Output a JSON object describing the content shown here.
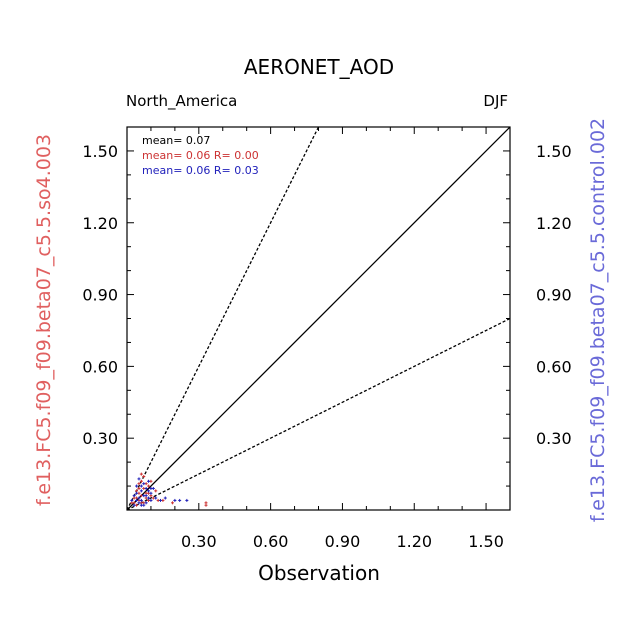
{
  "chart_data": {
    "type": "scatter",
    "title": "AERONET_AOD",
    "region": "North_America",
    "season": "DJF",
    "xlabel": "Observation",
    "ylabel_left": "f.e13.FC5.f09_f09.beta07_c5.5.so4.003",
    "ylabel_right": "f.e13.FC5.f09_f09.beta07_c5.5.control.002",
    "xlim": [
      0.0,
      1.6
    ],
    "ylim": [
      0.0,
      1.6
    ],
    "xticks": [
      0.3,
      0.6,
      0.9,
      1.2,
      1.5
    ],
    "yticks": [
      0.3,
      0.6,
      0.9,
      1.2,
      1.5
    ],
    "xtick_labels": [
      "0.30",
      "0.60",
      "0.90",
      "1.20",
      "1.50"
    ],
    "ytick_labels": [
      "0.30",
      "0.60",
      "0.90",
      "1.20",
      "1.50"
    ],
    "ref_lines": [
      {
        "name": "one-to-one",
        "slope": 1.0,
        "style": "solid"
      },
      {
        "name": "factor-2-upper",
        "slope": 2.0,
        "style": "dashed"
      },
      {
        "name": "factor-2-lower",
        "slope": 0.5,
        "style": "dashed"
      }
    ],
    "stats": {
      "obs_mean_text": "mean= 0.07",
      "model1_text": "mean= 0.06 R= 0.00",
      "model2_text": "mean= 0.06 R= 0.03"
    },
    "colors": {
      "model1": "#cc3333",
      "model2": "#2222bb",
      "axis": "#000000",
      "ylabel_left": "#e06060",
      "ylabel_right": "#6a6ad8"
    },
    "series": [
      {
        "name": "f.e13.FC5.f09_f09.beta07_c5.5.so4.003",
        "color": "#cc3333",
        "points": [
          [
            0.02,
            0.03
          ],
          [
            0.03,
            0.05
          ],
          [
            0.04,
            0.02
          ],
          [
            0.04,
            0.08
          ],
          [
            0.05,
            0.04
          ],
          [
            0.05,
            0.11
          ],
          [
            0.06,
            0.06
          ],
          [
            0.06,
            0.03
          ],
          [
            0.07,
            0.09
          ],
          [
            0.07,
            0.14
          ],
          [
            0.08,
            0.05
          ],
          [
            0.08,
            0.07
          ],
          [
            0.09,
            0.1
          ],
          [
            0.09,
            0.04
          ],
          [
            0.1,
            0.06
          ],
          [
            0.1,
            0.12
          ],
          [
            0.11,
            0.05
          ],
          [
            0.12,
            0.08
          ],
          [
            0.13,
            0.04
          ],
          [
            0.05,
            0.07
          ],
          [
            0.06,
            0.12
          ],
          [
            0.04,
            0.05
          ],
          [
            0.03,
            0.03
          ],
          [
            0.07,
            0.03
          ],
          [
            0.08,
            0.11
          ],
          [
            0.09,
            0.07
          ],
          [
            0.15,
            0.04
          ],
          [
            0.19,
            0.03
          ],
          [
            0.33,
            0.03
          ],
          [
            0.33,
            0.02
          ],
          [
            0.06,
            0.15
          ],
          [
            0.05,
            0.09
          ]
        ]
      },
      {
        "name": "f.e13.FC5.f09_f09.beta07_c5.5.control.002",
        "color": "#2222bb",
        "points": [
          [
            0.02,
            0.04
          ],
          [
            0.03,
            0.06
          ],
          [
            0.03,
            0.02
          ],
          [
            0.04,
            0.07
          ],
          [
            0.04,
            0.1
          ],
          [
            0.05,
            0.05
          ],
          [
            0.05,
            0.03
          ],
          [
            0.06,
            0.08
          ],
          [
            0.06,
            0.04
          ],
          [
            0.07,
            0.06
          ],
          [
            0.07,
            0.11
          ],
          [
            0.08,
            0.03
          ],
          [
            0.08,
            0.09
          ],
          [
            0.09,
            0.05
          ],
          [
            0.09,
            0.08
          ],
          [
            0.1,
            0.04
          ],
          [
            0.1,
            0.07
          ],
          [
            0.11,
            0.09
          ],
          [
            0.12,
            0.05
          ],
          [
            0.14,
            0.04
          ],
          [
            0.05,
            0.13
          ],
          [
            0.06,
            0.1
          ],
          [
            0.04,
            0.04
          ],
          [
            0.07,
            0.02
          ],
          [
            0.08,
            0.06
          ],
          [
            0.1,
            0.09
          ],
          [
            0.16,
            0.05
          ],
          [
            0.2,
            0.04
          ],
          [
            0.22,
            0.04
          ],
          [
            0.25,
            0.04
          ],
          [
            0.06,
            0.02
          ],
          [
            0.09,
            0.12
          ]
        ]
      }
    ]
  }
}
